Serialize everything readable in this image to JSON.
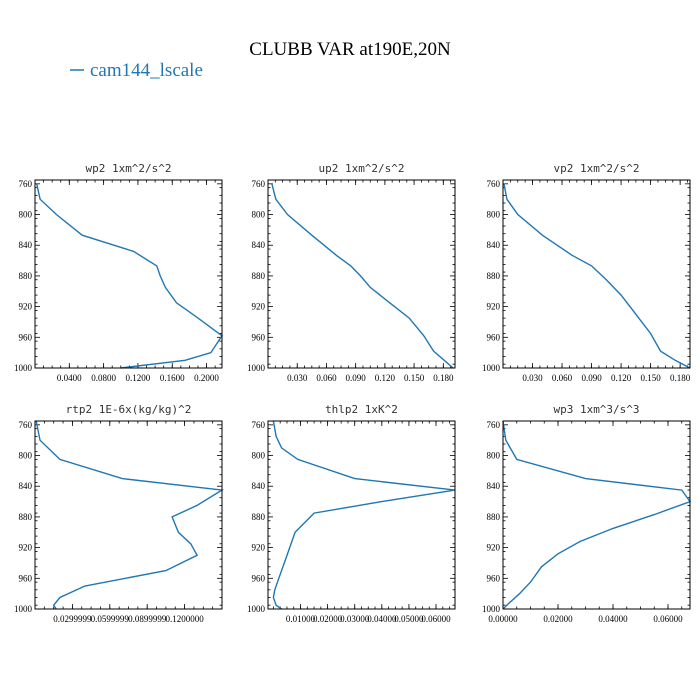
{
  "figure": {
    "title": "CLUBB VAR at190E,20N",
    "legend": {
      "label": "cam144_lscale",
      "color": "#1f77b4"
    }
  },
  "chart_data": [
    {
      "type": "line",
      "title": "wp2  1xm^2/s^2",
      "series": [
        {
          "name": "cam144_lscale",
          "color": "#1f77b4",
          "x": [
            0.002,
            0.006,
            0.025,
            0.055,
            0.115,
            0.142,
            0.146,
            0.152,
            0.165,
            0.19,
            0.218,
            0.205,
            0.175,
            0.1
          ],
          "y": [
            760,
            780,
            800,
            827,
            848,
            867,
            880,
            895,
            915,
            935,
            958,
            980,
            990,
            1000
          ]
        }
      ],
      "xlim": [
        0.0,
        0.218
      ],
      "ylim": [
        1000,
        755
      ],
      "xticks": [
        0.04,
        0.08,
        0.12,
        0.16,
        0.2
      ],
      "xtick_labels": [
        "0.0400",
        "0.0800",
        "0.1200",
        "0.1600",
        "0.2000"
      ],
      "yticks": [
        760,
        800,
        840,
        880,
        920,
        960,
        1000
      ],
      "ytick_labels": [
        "760",
        "800",
        "840",
        "880",
        "920",
        "960",
        "1000"
      ]
    },
    {
      "type": "line",
      "title": "up2  1xm^2/s^2",
      "series": [
        {
          "name": "cam144_lscale",
          "color": "#1f77b4",
          "x": [
            0.004,
            0.008,
            0.02,
            0.045,
            0.07,
            0.085,
            0.095,
            0.105,
            0.125,
            0.145,
            0.16,
            0.17,
            0.19
          ],
          "y": [
            760,
            780,
            800,
            827,
            853,
            867,
            880,
            895,
            915,
            935,
            958,
            978,
            1000
          ]
        }
      ],
      "xlim": [
        0.0,
        0.192
      ],
      "ylim": [
        1000,
        755
      ],
      "xticks": [
        0.03,
        0.06,
        0.09,
        0.12,
        0.15,
        0.18
      ],
      "xtick_labels": [
        "0.030",
        "0.060",
        "0.090",
        "0.120",
        "0.150",
        "0.180"
      ],
      "yticks": [
        760,
        800,
        840,
        880,
        920,
        960,
        1000
      ],
      "ytick_labels": [
        "760",
        "800",
        "840",
        "880",
        "920",
        "960",
        "1000"
      ]
    },
    {
      "type": "line",
      "title": "vp2  1xm^2/s^2",
      "series": [
        {
          "name": "cam144_lscale",
          "color": "#1f77b4",
          "x": [
            0.001,
            0.004,
            0.015,
            0.04,
            0.07,
            0.09,
            0.105,
            0.12,
            0.135,
            0.15,
            0.16,
            0.175,
            0.19
          ],
          "y": [
            760,
            780,
            800,
            827,
            853,
            867,
            885,
            905,
            930,
            955,
            978,
            990,
            1000
          ]
        }
      ],
      "xlim": [
        0.0,
        0.19
      ],
      "ylim": [
        1000,
        755
      ],
      "xticks": [
        0.03,
        0.06,
        0.09,
        0.12,
        0.15,
        0.18
      ],
      "xtick_labels": [
        "0.030",
        "0.060",
        "0.090",
        "0.120",
        "0.150",
        "0.180"
      ],
      "yticks": [
        760,
        800,
        840,
        880,
        920,
        960,
        1000
      ],
      "ytick_labels": [
        "760",
        "800",
        "840",
        "880",
        "920",
        "960",
        "1000"
      ]
    },
    {
      "type": "line",
      "title": "rtp2  1E-6x(kg/kg)^2",
      "series": [
        {
          "name": "cam144_lscale",
          "color": "#1f77b4",
          "x": [
            0.001,
            0.004,
            0.02,
            0.07,
            0.15,
            0.13,
            0.11,
            0.115,
            0.125,
            0.13,
            0.105,
            0.04,
            0.02,
            0.015,
            0.017
          ],
          "y": [
            755,
            780,
            805,
            830,
            845,
            865,
            880,
            900,
            915,
            930,
            950,
            970,
            985,
            995,
            1000
          ]
        }
      ],
      "xlim": [
        0.0,
        0.15
      ],
      "ylim": [
        1000,
        755
      ],
      "xticks": [
        0.03,
        0.06,
        0.09,
        0.12
      ],
      "xtick_labels": [
        "0.0299999",
        "0.0599999",
        "0.0899999",
        "0.1200000"
      ],
      "yticks": [
        760,
        800,
        840,
        880,
        920,
        960,
        1000
      ],
      "ytick_labels": [
        "760",
        "800",
        "840",
        "880",
        "920",
        "960",
        "1000"
      ]
    },
    {
      "type": "line",
      "title": "thlp2  1xK^2",
      "series": [
        {
          "name": "cam144_lscale",
          "color": "#1f77b4",
          "x": [
            0.0,
            0.001,
            0.003,
            0.009,
            0.03,
            0.067,
            0.04,
            0.015,
            0.008,
            0.006,
            0.004,
            0.002,
            0.0005,
            0.0,
            0.001,
            0.003
          ],
          "y": [
            755,
            775,
            790,
            805,
            830,
            845,
            860,
            875,
            900,
            920,
            940,
            960,
            975,
            985,
            995,
            1000
          ]
        }
      ],
      "xlim": [
        -0.002,
        0.067
      ],
      "ylim": [
        1000,
        755
      ],
      "xticks": [
        0.01,
        0.02,
        0.03,
        0.04,
        0.05,
        0.06
      ],
      "xtick_labels": [
        "0.01000",
        "0.02000",
        "0.03000",
        "0.04000",
        "0.05000",
        "0.06000"
      ],
      "yticks": [
        760,
        800,
        840,
        880,
        920,
        960,
        1000
      ],
      "ytick_labels": [
        "760",
        "800",
        "840",
        "880",
        "920",
        "960",
        "1000"
      ]
    },
    {
      "type": "line",
      "title": "wp3  1xm^3/s^3",
      "series": [
        {
          "name": "cam144_lscale",
          "color": "#1f77b4",
          "x": [
            0.0,
            0.001,
            0.005,
            0.03,
            0.065,
            0.068,
            0.055,
            0.04,
            0.028,
            0.02,
            0.014,
            0.01,
            0.006,
            0.002,
            0.0
          ],
          "y": [
            755,
            780,
            805,
            830,
            845,
            860,
            877,
            895,
            912,
            928,
            945,
            965,
            980,
            993,
            1000
          ]
        }
      ],
      "xlim": [
        0.0,
        0.068
      ],
      "ylim": [
        1000,
        755
      ],
      "xticks": [
        0.0,
        0.02,
        0.04,
        0.06
      ],
      "xtick_labels": [
        "0.00000",
        "0.02000",
        "0.04000",
        "0.06000"
      ],
      "yticks": [
        760,
        800,
        840,
        880,
        920,
        960,
        1000
      ],
      "ytick_labels": [
        "760",
        "800",
        "840",
        "880",
        "920",
        "960",
        "1000"
      ]
    }
  ]
}
